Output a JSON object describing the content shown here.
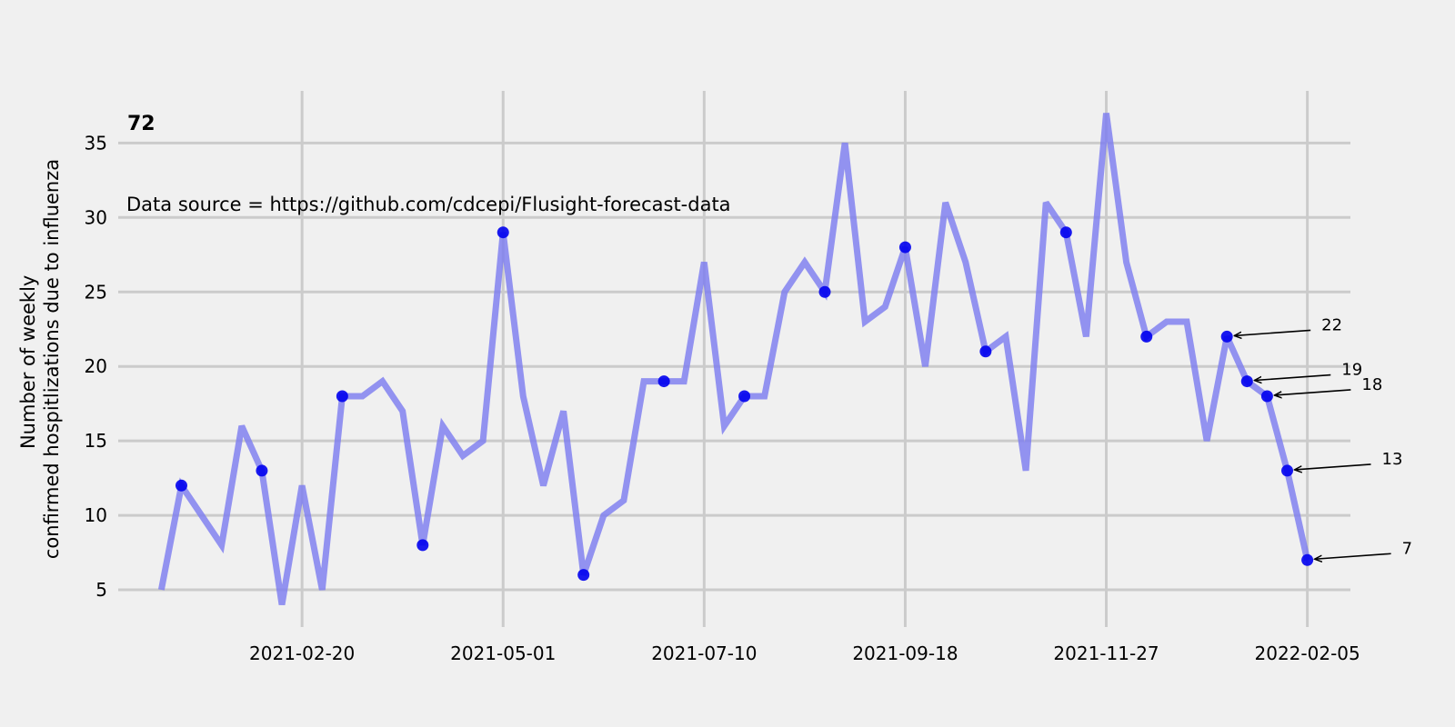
{
  "chart_data": {
    "type": "line",
    "panel_label": "72",
    "source_text": "Data source = https://github.com/cdcepi/Flusight-forecast-data",
    "ylabel_lines": [
      "Number of weekly",
      "confirmed hospitlizations due to influenza"
    ],
    "xlabel": "",
    "x_start": "2021-01-02",
    "x_step_days": 7,
    "values": [
      5,
      12,
      10,
      8,
      16,
      13,
      4,
      12,
      5,
      18,
      18,
      19,
      17,
      8,
      16,
      14,
      15,
      29,
      18,
      12,
      17,
      6,
      10,
      11,
      19,
      19,
      19,
      27,
      16,
      18,
      18,
      25,
      27,
      25,
      35,
      23,
      24,
      28,
      20,
      31,
      27,
      21,
      22,
      13,
      31,
      29,
      22,
      37,
      27,
      22,
      23,
      23,
      15,
      22,
      19,
      18,
      13,
      7
    ],
    "marked_indices": [
      1,
      5,
      9,
      13,
      17,
      21,
      25,
      29,
      33,
      37,
      41,
      45,
      49,
      53,
      54,
      55,
      56,
      57
    ],
    "annotations": [
      {
        "index": 53,
        "label": "22"
      },
      {
        "index": 54,
        "label": "19"
      },
      {
        "index": 55,
        "label": "18"
      },
      {
        "index": 56,
        "label": "13"
      },
      {
        "index": 57,
        "label": "7"
      }
    ],
    "x_ticks": [
      "2021-02-20",
      "2021-05-01",
      "2021-07-10",
      "2021-09-18",
      "2021-11-27",
      "2022-02-05"
    ],
    "y_ticks": [
      5,
      10,
      15,
      20,
      25,
      30,
      35
    ],
    "xlim": [
      "2020-12-18",
      "2022-02-20"
    ],
    "ylim": [
      2.5,
      38.5
    ],
    "grid": true,
    "colors": {
      "background": "#f0f0f0",
      "grid": "#cbcbcb",
      "line": "#7b7bf0",
      "marker": "#0000ee",
      "text": "#000000"
    }
  }
}
